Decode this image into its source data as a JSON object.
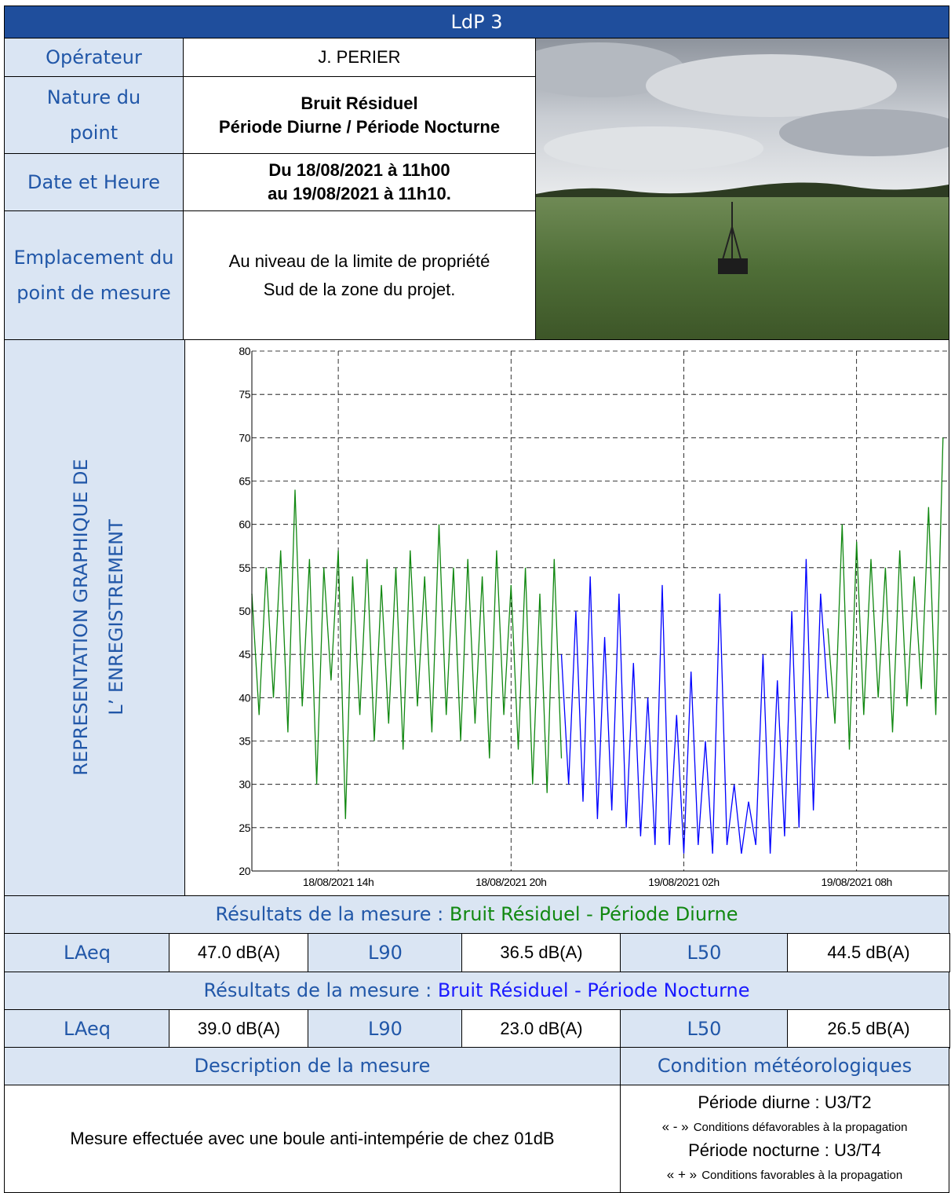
{
  "header": {
    "title": "LdP 3"
  },
  "info": {
    "rows": [
      {
        "label": "Opérateur",
        "value": [
          "J. PERIER"
        ]
      },
      {
        "label": "Nature du point",
        "value": [
          "Bruit Résiduel",
          "Période Diurne / Période Nocturne"
        ]
      },
      {
        "label": "Date et Heure",
        "value": [
          "Du 18/08/2021 à 11h00",
          "au 19/08/2021 à 11h10."
        ]
      },
      {
        "label": "Emplacement du point de mesure",
        "value": [
          "Au niveau de la limite de propriété",
          "Sud de la zone du projet."
        ]
      }
    ]
  },
  "chart_section": {
    "label": [
      "REPRESENTATION GRAPHIQUE DE",
      "L’ ENREGISTREMENT"
    ]
  },
  "chart_data": {
    "type": "line",
    "x": [
      11,
      11.25,
      11.5,
      11.75,
      12,
      12.25,
      12.5,
      12.75,
      13,
      13.25,
      13.5,
      13.75,
      14,
      14.25,
      14.5,
      14.75,
      15,
      15.25,
      15.5,
      15.75,
      16,
      16.25,
      16.5,
      16.75,
      17,
      17.25,
      17.5,
      17.75,
      18,
      18.25,
      18.5,
      18.75,
      19,
      19.25,
      19.5,
      19.75,
      20,
      20.25,
      20.5,
      20.75,
      21,
      21.25,
      21.5,
      21.75,
      22,
      22.25,
      22.5,
      22.75,
      23,
      23.25,
      23.5,
      23.75,
      24,
      24.25,
      24.5,
      24.75,
      25,
      25.25,
      25.5,
      25.75,
      26,
      26.25,
      26.5,
      26.75,
      27,
      27.25,
      27.5,
      27.75,
      28,
      28.25,
      28.5,
      28.75,
      29,
      29.25,
      29.5,
      29.75,
      30,
      30.25,
      30.5,
      30.75,
      31,
      31.25,
      31.5,
      31.75,
      32,
      32.25,
      32.5,
      32.75,
      33,
      33.25,
      33.5,
      33.75,
      34,
      34.25,
      34.5,
      34.75,
      35
    ],
    "series": [
      {
        "color": "#118811",
        "values": [
          52,
          38,
          55,
          40,
          57,
          36,
          64,
          39,
          56,
          30,
          55,
          42,
          57,
          26,
          54,
          38,
          56,
          35,
          53,
          37,
          55,
          34,
          57,
          39,
          54,
          36,
          60,
          38,
          55,
          35,
          56,
          37,
          54,
          33,
          57,
          38,
          53,
          34,
          55,
          30,
          52,
          29,
          56,
          33,
          null,
          null,
          null,
          null,
          null,
          null,
          null,
          null,
          null,
          null,
          null,
          null,
          null,
          null,
          null,
          null,
          null,
          null,
          null,
          null,
          null,
          null,
          null,
          null,
          null,
          null,
          null,
          null,
          null,
          null,
          null,
          null,
          null,
          null,
          null,
          null,
          48,
          37,
          60,
          34,
          58,
          38,
          56,
          40,
          55,
          36,
          57,
          39,
          54,
          41,
          62,
          38,
          70
        ]
      },
      {
        "color": "#0000ff",
        "values": [
          null,
          null,
          null,
          null,
          null,
          null,
          null,
          null,
          null,
          null,
          null,
          null,
          null,
          null,
          null,
          null,
          null,
          null,
          null,
          null,
          null,
          null,
          null,
          null,
          null,
          null,
          null,
          null,
          null,
          null,
          null,
          null,
          null,
          null,
          null,
          null,
          null,
          null,
          null,
          null,
          null,
          null,
          null,
          45,
          30,
          50,
          28,
          54,
          26,
          47,
          27,
          52,
          25,
          44,
          24,
          40,
          23,
          53,
          23,
          38,
          22,
          43,
          23,
          35,
          22,
          52,
          23,
          30,
          22,
          28,
          23,
          45,
          22,
          42,
          24,
          50,
          25,
          56,
          27,
          52,
          40,
          null,
          null,
          null,
          null,
          null,
          null,
          null,
          null,
          null,
          null,
          null,
          null,
          null,
          null,
          null,
          null
        ]
      }
    ],
    "xlim": [
      11,
      35.17
    ],
    "xticks": [
      {
        "value": 14,
        "label": "18/08/2021 14h"
      },
      {
        "value": 20,
        "label": "18/08/2021 20h"
      },
      {
        "value": 26,
        "label": "19/08/2021 02h"
      },
      {
        "value": 32,
        "label": "19/08/2021 08h"
      }
    ],
    "ylim": [
      20,
      80
    ],
    "yticks": [
      20,
      25,
      30,
      35,
      40,
      45,
      50,
      55,
      60,
      65,
      70,
      75,
      80
    ],
    "grid": true
  },
  "results": [
    {
      "title": "Résultats de la mesure :",
      "period": "Bruit Résiduel - Période Diurne",
      "cells": [
        [
          "LAeq",
          "47.0 dB(A)"
        ],
        [
          "L90",
          "36.5 dB(A)"
        ],
        [
          "L50",
          "44.5 dB(A)"
        ]
      ]
    },
    {
      "title": "Résultats de la mesure :",
      "period": "Bruit Résiduel - Période Nocturne",
      "cells": [
        [
          "LAeq",
          "39.0 dB(A)"
        ],
        [
          "L90",
          "23.0 dB(A)"
        ],
        [
          "L50",
          "26.5 dB(A)"
        ]
      ]
    }
  ],
  "description": {
    "heading": "Description de la mesure",
    "text": "Mesure effectuée avec une boule anti-intempérie de chez 01dB"
  },
  "meteo": {
    "heading": "Condition météorologiques",
    "lines": [
      {
        "text": "Période diurne : U3/T2"
      },
      {
        "symbol": "« - »",
        "text": "Conditions défavorables à la propagation"
      },
      {
        "text": "Période nocturne : U3/T4"
      },
      {
        "symbol": "« + »",
        "text": "Conditions favorables à la propagation"
      }
    ]
  }
}
